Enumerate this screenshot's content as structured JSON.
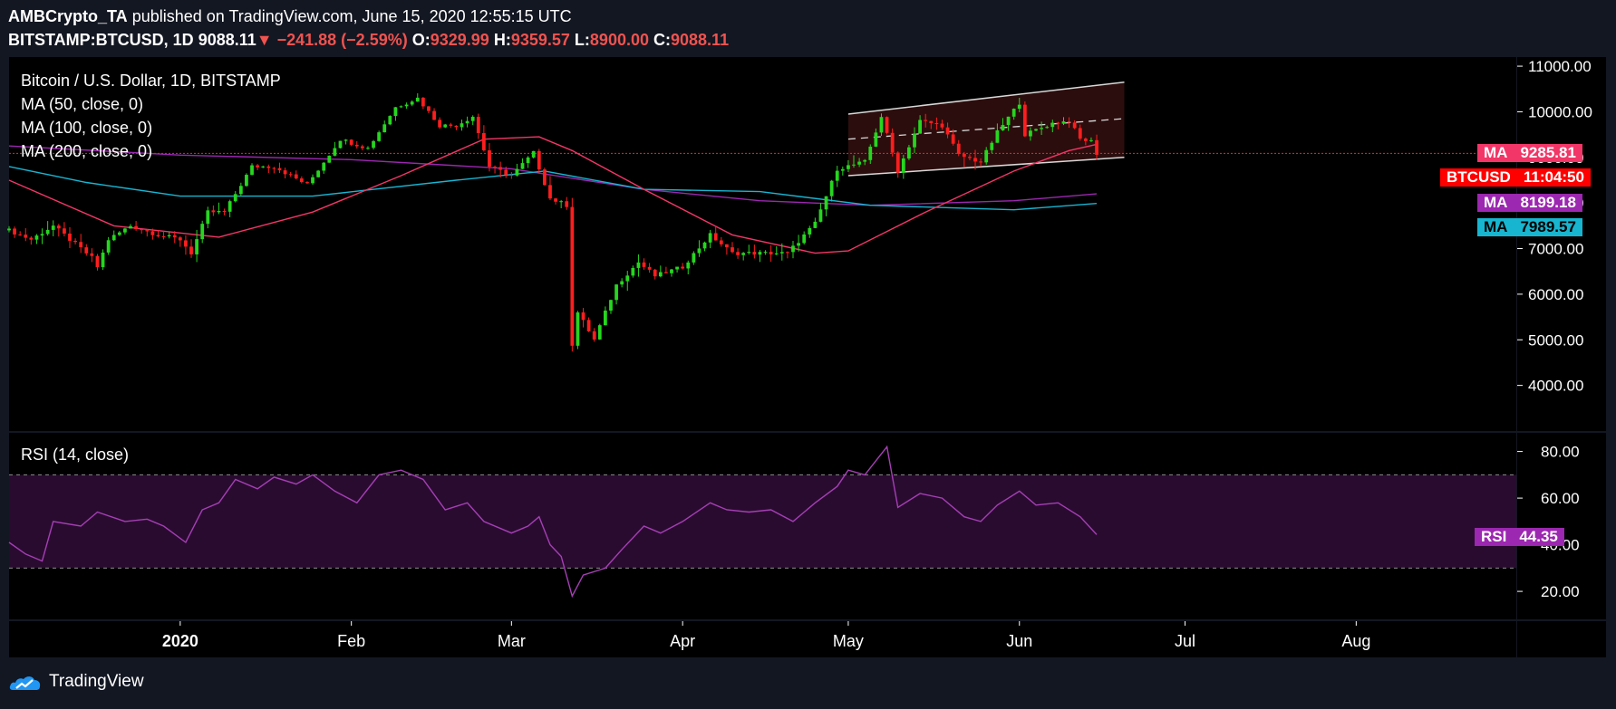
{
  "header": {
    "author": "AMBCrypto_TA",
    "published_text": "published on TradingView.com, June 15, 2020 12:55:15 UTC",
    "symbol": "BITSTAMP:BTCUSD, 1D",
    "last": "9088.11",
    "change_arrow": "▼",
    "change": "−241.88 (−2.59%)",
    "o_label": "O:",
    "o_value": "9329.99",
    "h_label": "H:",
    "h_value": "9359.57",
    "l_label": "L:",
    "l_value": "8900.00",
    "c_label": "C:",
    "c_value": "9088.11"
  },
  "legend": {
    "title": "Bitcoin / U.S. Dollar, 1D, BITSTAMP",
    "ma50": "MA (50, close, 0)",
    "ma100": "MA (100, close, 0)",
    "ma200": "MA (200, close, 0)",
    "rsi": "RSI (14, close)"
  },
  "price_tags": {
    "ma50": {
      "label": "MA",
      "value": "9285.81"
    },
    "btc": {
      "label": "BTCUSD",
      "value": "11:04:50"
    },
    "ma200": {
      "label": "MA",
      "value": "8199.18"
    },
    "ma100": {
      "label": "MA",
      "value": "7989.57"
    },
    "rsi": {
      "label": "RSI",
      "value": "44.35"
    }
  },
  "footer": {
    "brand": "TradingView"
  },
  "colors": {
    "up": "#26d61f",
    "down": "#ff1e1e",
    "ma50": "#f23667",
    "ma100": "#18b5d2",
    "ma200": "#9c27b0",
    "rsi_line": "#a53fb5",
    "rsi_band": "#2a0b30",
    "channel_fill": "#2c0d0d",
    "panel_bg": "#131722"
  },
  "chart_data": {
    "type": "candlestick",
    "title": "Bitcoin / U.S. Dollar, 1D, BITSTAMP",
    "price_axis": {
      "ylim": [
        3000,
        11200
      ],
      "ticks": [
        "11000.00",
        "10000.00",
        "9000.00",
        "8000.00",
        "7000.00",
        "6000.00",
        "5000.00",
        "4000.00"
      ],
      "tick_values": [
        11000,
        10000,
        9000,
        8000,
        7000,
        6000,
        5000,
        4000
      ]
    },
    "rsi_axis": {
      "ylim": [
        8,
        88
      ],
      "ticks": [
        "80.00",
        "60.00",
        "40.00",
        "20.00"
      ],
      "tick_values": [
        80,
        60,
        40,
        20
      ],
      "band": [
        30,
        70
      ]
    },
    "x_axis": {
      "start": "2019-12-01",
      "end": "2020-08-30",
      "ticks": [
        {
          "label": "2020",
          "date": "2020-01-01",
          "bold": true
        },
        {
          "label": "Feb",
          "date": "2020-02-01"
        },
        {
          "label": "Mar",
          "date": "2020-03-01"
        },
        {
          "label": "Apr",
          "date": "2020-04-01"
        },
        {
          "label": "May",
          "date": "2020-05-01"
        },
        {
          "label": "Jun",
          "date": "2020-06-01"
        },
        {
          "label": "Jul",
          "date": "2020-07-01"
        },
        {
          "label": "Aug",
          "date": "2020-08-01"
        }
      ]
    },
    "current_price": 9088.11,
    "price_anchors": [
      [
        "2019-12-01",
        7400
      ],
      [
        "2019-12-05",
        7200
      ],
      [
        "2019-12-09",
        7500
      ],
      [
        "2019-12-12",
        7200
      ],
      [
        "2019-12-16",
        6800
      ],
      [
        "2019-12-17",
        6600
      ],
      [
        "2019-12-19",
        7200
      ],
      [
        "2019-12-23",
        7500
      ],
      [
        "2019-12-28",
        7300
      ],
      [
        "2020-01-01",
        7200
      ],
      [
        "2020-01-03",
        6900
      ],
      [
        "2020-01-06",
        7800
      ],
      [
        "2020-01-09",
        7800
      ],
      [
        "2020-01-14",
        8800
      ],
      [
        "2020-01-18",
        8800
      ],
      [
        "2020-01-24",
        8400
      ],
      [
        "2020-01-30",
        9400
      ],
      [
        "2020-02-04",
        9200
      ],
      [
        "2020-02-09",
        10100
      ],
      [
        "2020-02-13",
        10300
      ],
      [
        "2020-02-17",
        9700
      ],
      [
        "2020-02-20",
        9700
      ],
      [
        "2020-02-23",
        9900
      ],
      [
        "2020-02-26",
        8800
      ],
      [
        "2020-03-01",
        8600
      ],
      [
        "2020-03-05",
        9100
      ],
      [
        "2020-03-08",
        8100
      ],
      [
        "2020-03-11",
        7950
      ],
      [
        "2020-03-12",
        4900
      ],
      [
        "2020-03-13",
        5600
      ],
      [
        "2020-03-16",
        5000
      ],
      [
        "2020-03-20",
        6200
      ],
      [
        "2020-03-24",
        6700
      ],
      [
        "2020-03-27",
        6400
      ],
      [
        "2020-04-01",
        6600
      ],
      [
        "2020-04-06",
        7300
      ],
      [
        "2020-04-10",
        6900
      ],
      [
        "2020-04-14",
        6900
      ],
      [
        "2020-04-20",
        6900
      ],
      [
        "2020-04-25",
        7550
      ],
      [
        "2020-04-29",
        8750
      ],
      [
        "2020-05-04",
        8900
      ],
      [
        "2020-05-07",
        9900
      ],
      [
        "2020-05-10",
        8700
      ],
      [
        "2020-05-14",
        9800
      ],
      [
        "2020-05-18",
        9700
      ],
      [
        "2020-05-21",
        9050
      ],
      [
        "2020-05-25",
        8900
      ],
      [
        "2020-05-28",
        9550
      ],
      [
        "2020-06-01",
        10200
      ],
      [
        "2020-06-02",
        9500
      ],
      [
        "2020-06-07",
        9750
      ],
      [
        "2020-06-10",
        9800
      ],
      [
        "2020-06-12",
        9400
      ],
      [
        "2020-06-14",
        9350
      ],
      [
        "2020-06-15",
        9088
      ]
    ],
    "ma50": [
      [
        "2019-12-01",
        8500
      ],
      [
        "2019-12-20",
        7500
      ],
      [
        "2020-01-08",
        7250
      ],
      [
        "2020-01-25",
        7800
      ],
      [
        "2020-02-10",
        8600
      ],
      [
        "2020-02-25",
        9400
      ],
      [
        "2020-03-06",
        9450
      ],
      [
        "2020-03-12",
        9150
      ],
      [
        "2020-03-25",
        8300
      ],
      [
        "2020-04-10",
        7300
      ],
      [
        "2020-04-25",
        6900
      ],
      [
        "2020-05-01",
        6950
      ],
      [
        "2020-05-15",
        7800
      ],
      [
        "2020-05-31",
        8700
      ],
      [
        "2020-06-10",
        9150
      ],
      [
        "2020-06-15",
        9286
      ]
    ],
    "ma100": [
      [
        "2019-12-01",
        8800
      ],
      [
        "2019-12-15",
        8450
      ],
      [
        "2020-01-01",
        8150
      ],
      [
        "2020-01-25",
        8150
      ],
      [
        "2020-02-20",
        8500
      ],
      [
        "2020-03-07",
        8700
      ],
      [
        "2020-03-25",
        8300
      ],
      [
        "2020-04-15",
        8250
      ],
      [
        "2020-05-05",
        7950
      ],
      [
        "2020-05-31",
        7850
      ],
      [
        "2020-06-15",
        7990
      ]
    ],
    "ma200": [
      [
        "2019-12-01",
        9250
      ],
      [
        "2020-01-01",
        9050
      ],
      [
        "2020-02-01",
        8950
      ],
      [
        "2020-03-01",
        8750
      ],
      [
        "2020-03-25",
        8300
      ],
      [
        "2020-04-15",
        8050
      ],
      [
        "2020-05-05",
        7950
      ],
      [
        "2020-05-31",
        8050
      ],
      [
        "2020-06-15",
        8199
      ]
    ],
    "channel": {
      "start": "2020-05-01",
      "end": "2020-06-20",
      "upper": [
        9950,
        10650
      ],
      "mid": [
        9400,
        9850
      ],
      "lower": [
        8600,
        9000
      ]
    },
    "rsi": [
      [
        "2019-12-01",
        41
      ],
      [
        "2019-12-04",
        36
      ],
      [
        "2019-12-07",
        33
      ],
      [
        "2019-12-09",
        50
      ],
      [
        "2019-12-14",
        48
      ],
      [
        "2019-12-17",
        54
      ],
      [
        "2019-12-22",
        50
      ],
      [
        "2019-12-26",
        51
      ],
      [
        "2019-12-29",
        48
      ],
      [
        "2020-01-02",
        41
      ],
      [
        "2020-01-05",
        55
      ],
      [
        "2020-01-08",
        58
      ],
      [
        "2020-01-11",
        68
      ],
      [
        "2020-01-15",
        64
      ],
      [
        "2020-01-18",
        69
      ],
      [
        "2020-01-22",
        66
      ],
      [
        "2020-01-25",
        70
      ],
      [
        "2020-01-29",
        63
      ],
      [
        "2020-02-02",
        58
      ],
      [
        "2020-02-06",
        70
      ],
      [
        "2020-02-10",
        72
      ],
      [
        "2020-02-14",
        68
      ],
      [
        "2020-02-18",
        55
      ],
      [
        "2020-02-22",
        58
      ],
      [
        "2020-02-25",
        50
      ],
      [
        "2020-03-01",
        45
      ],
      [
        "2020-03-04",
        48
      ],
      [
        "2020-03-06",
        52
      ],
      [
        "2020-03-08",
        40
      ],
      [
        "2020-03-10",
        35
      ],
      [
        "2020-03-12",
        18
      ],
      [
        "2020-03-14",
        27
      ],
      [
        "2020-03-18",
        30
      ],
      [
        "2020-03-21",
        38
      ],
      [
        "2020-03-25",
        48
      ],
      [
        "2020-03-28",
        45
      ],
      [
        "2020-04-01",
        50
      ],
      [
        "2020-04-06",
        58
      ],
      [
        "2020-04-09",
        55
      ],
      [
        "2020-04-13",
        54
      ],
      [
        "2020-04-17",
        55
      ],
      [
        "2020-04-21",
        50
      ],
      [
        "2020-04-25",
        58
      ],
      [
        "2020-04-29",
        65
      ],
      [
        "2020-05-01",
        72
      ],
      [
        "2020-05-04",
        70
      ],
      [
        "2020-05-08",
        82
      ],
      [
        "2020-05-10",
        56
      ],
      [
        "2020-05-14",
        62
      ],
      [
        "2020-05-18",
        60
      ],
      [
        "2020-05-22",
        52
      ],
      [
        "2020-05-25",
        50
      ],
      [
        "2020-05-28",
        57
      ],
      [
        "2020-06-01",
        63
      ],
      [
        "2020-06-04",
        57
      ],
      [
        "2020-06-08",
        58
      ],
      [
        "2020-06-12",
        52
      ],
      [
        "2020-06-15",
        44.35
      ]
    ]
  }
}
